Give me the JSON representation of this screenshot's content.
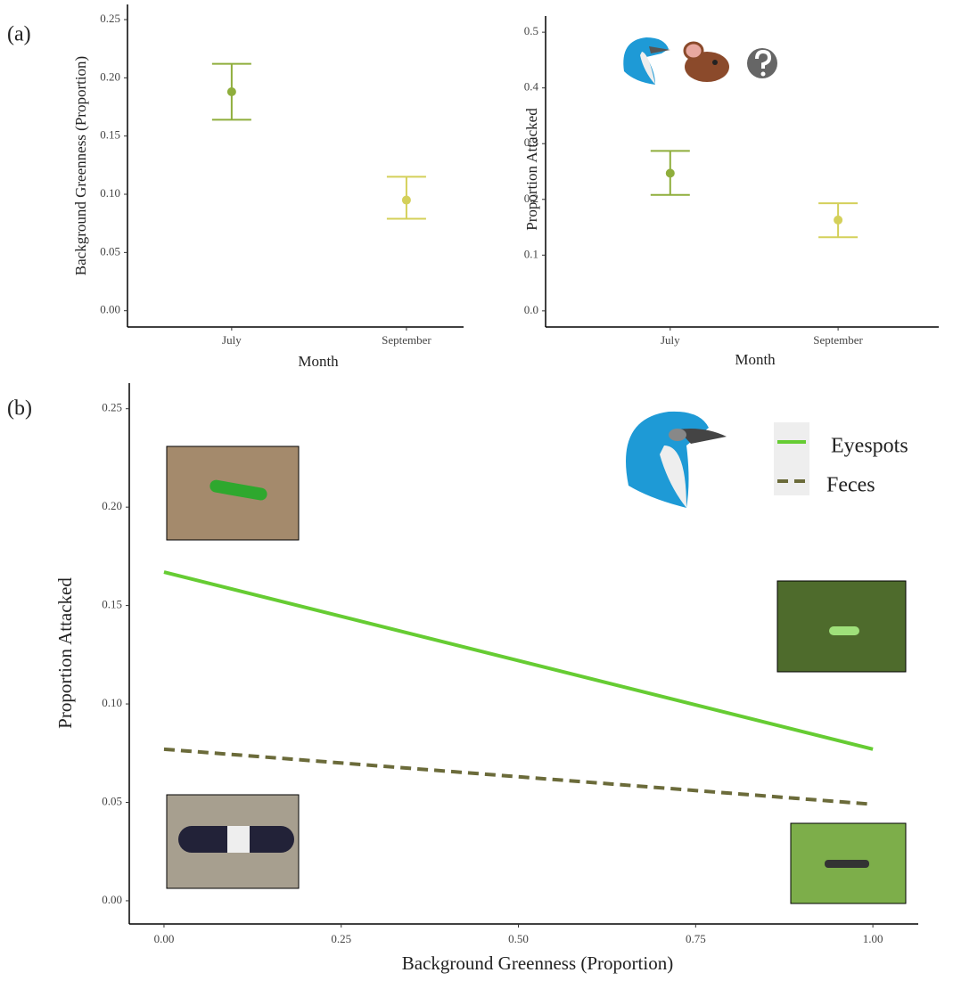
{
  "chart_data": [
    {
      "type": "errorbar",
      "panel": "(a)",
      "x_label": "Month",
      "y_label": "Background Greenness (Proportion)",
      "categories": [
        "July",
        "September"
      ],
      "values": [
        0.188,
        0.095
      ],
      "lower": [
        0.164,
        0.079
      ],
      "upper": [
        0.212,
        0.115
      ],
      "colors": [
        "#8fae3c",
        "#d4d05a"
      ],
      "ylim": [
        -0.014,
        0.263
      ],
      "yticks": [
        {
          "value": 0,
          "label": "0.00"
        },
        0.05,
        {
          "value": 0.1,
          "label": "0.10"
        },
        0.15,
        {
          "value": 0.2,
          "label": "0.20"
        },
        0.25
      ]
    },
    {
      "type": "errorbar",
      "x_label": "Month",
      "y_label": "Proportion Attacked",
      "categories": [
        "July",
        "September"
      ],
      "values": [
        0.247,
        0.163
      ],
      "lower": [
        0.208,
        0.132
      ],
      "upper": [
        0.287,
        0.193
      ],
      "colors": [
        "#8fae3c",
        "#d4d05a"
      ],
      "ylim": [
        -0.029,
        0.529
      ],
      "yticks": [
        {
          "value": 0,
          "label": "0.0"
        },
        0.1,
        0.2,
        0.3,
        0.4,
        0.5
      ]
    },
    {
      "type": "line",
      "panel": "(b)",
      "x_label": "Background Greenness (Proportion)",
      "y_label": "Proportion Attacked",
      "x": [
        0,
        1
      ],
      "series": [
        {
          "name": "Eyespots",
          "color": "#66cc33",
          "line_style": "solid",
          "values": [
            0.167,
            0.077
          ]
        },
        {
          "name": "Feces",
          "color": "#6b6b3a",
          "line_style": "dashed",
          "values": [
            0.077,
            0.049
          ]
        }
      ],
      "xlim": [
        -0.049,
        1.064
      ],
      "xticks": [
        {
          "value": 0,
          "label": "0.00"
        },
        0.25,
        {
          "value": 0.5,
          "label": "0.50"
        },
        0.75,
        {
          "value": 1,
          "label": "1.00"
        }
      ],
      "ylim": [
        -0.0118,
        0.263
      ],
      "yticks": [
        {
          "value": 0,
          "label": "0.00"
        },
        0.05,
        {
          "value": 0.1,
          "label": "0.10"
        },
        0.15,
        {
          "value": 0.2,
          "label": "0.20"
        },
        0.25
      ]
    }
  ]
}
